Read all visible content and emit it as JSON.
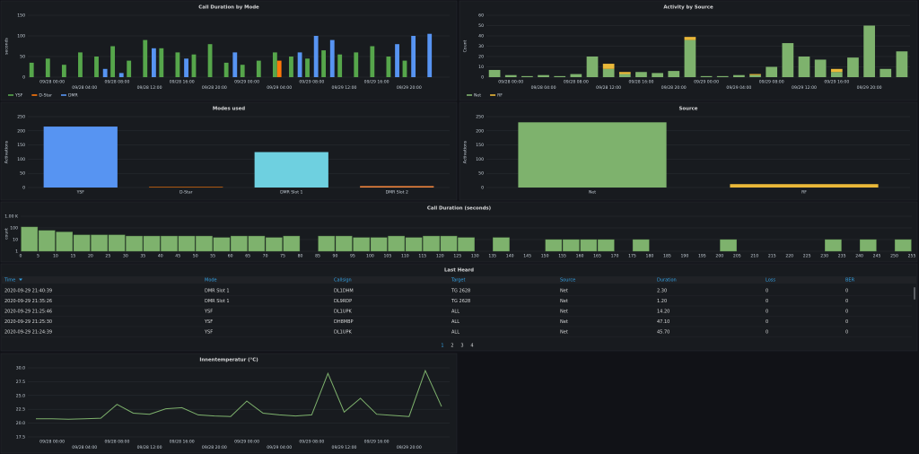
{
  "chart_data": [
    {
      "type": "bar",
      "title": "Call Duration by Mode",
      "ylabel": "seconds",
      "legend": "bottom-left",
      "ylim": [
        0,
        150
      ],
      "yticks": [
        0,
        50,
        100,
        150
      ],
      "grid": true,
      "categories": [
        null,
        "09/28 00:00",
        null,
        "09/28 04:00",
        null,
        "09/28 08:00",
        null,
        "09/28 12:00",
        null,
        "09/28 16:00",
        null,
        "09/28 20:00",
        null,
        "09/29 00:00",
        null,
        "09/29 04:00",
        null,
        "09/29 08:00",
        null,
        "09/29 12:00",
        null,
        "09/29 16:00",
        null,
        "09/29 20:00",
        null,
        null
      ],
      "series": [
        {
          "name": "YSF",
          "color": "#56a64b",
          "values": [
            35,
            45,
            30,
            60,
            50,
            75,
            40,
            90,
            70,
            60,
            55,
            80,
            35,
            30,
            40,
            60,
            50,
            45,
            65,
            55,
            60,
            75,
            50,
            40,
            null,
            null
          ]
        },
        {
          "name": "D-Star",
          "color": "#ff780a",
          "values": [
            null,
            null,
            null,
            null,
            null,
            null,
            null,
            null,
            null,
            null,
            null,
            null,
            null,
            null,
            null,
            40,
            null,
            null,
            null,
            null,
            null,
            null,
            null,
            null,
            null,
            null
          ]
        },
        {
          "name": "DMR",
          "color": "#5794f2",
          "values": [
            null,
            null,
            null,
            null,
            20,
            10,
            null,
            70,
            null,
            45,
            null,
            null,
            60,
            null,
            null,
            null,
            60,
            100,
            90,
            null,
            null,
            null,
            80,
            100,
            105,
            null
          ]
        }
      ]
    },
    {
      "type": "bar",
      "stacked": true,
      "title": "Activity by Source",
      "ylabel": "Count",
      "legend": "bottom-left",
      "ylim": [
        0,
        60
      ],
      "yticks": [
        0,
        10,
        20,
        30,
        40,
        50,
        60
      ],
      "grid": true,
      "categories": [
        null,
        "09/28 00:00",
        null,
        "09/28 04:00",
        null,
        "09/28 08:00",
        null,
        "09/28 12:00",
        null,
        "09/28 16:00",
        null,
        "09/28 20:00",
        null,
        "09/29 00:00",
        null,
        "09/29 04:00",
        null,
        "09/29 08:00",
        null,
        "09/29 12:00",
        null,
        "09/29 16:00",
        null,
        "09/29 20:00",
        null,
        null
      ],
      "series": [
        {
          "name": "Net",
          "color": "#7eb26d",
          "values": [
            7,
            2,
            1,
            2,
            1,
            3,
            20,
            8,
            3,
            5,
            4,
            6,
            36,
            1,
            1,
            2,
            2,
            10,
            33,
            20,
            17,
            5,
            19,
            50,
            8,
            25
          ]
        },
        {
          "name": "RF",
          "color": "#eab839",
          "values": [
            null,
            null,
            null,
            null,
            null,
            null,
            null,
            5,
            2,
            null,
            null,
            null,
            3,
            null,
            null,
            null,
            1,
            null,
            null,
            null,
            null,
            3,
            null,
            null,
            null,
            null
          ]
        }
      ]
    },
    {
      "type": "category-bar",
      "title": "Modes used",
      "ylabel": "Activations",
      "ylim": [
        0,
        250
      ],
      "yticks": [
        0,
        50,
        100,
        150,
        200,
        250
      ],
      "grid": true,
      "categories": [
        "YSF",
        "D-Star",
        "DMR Slot 1",
        "DMR Slot 2"
      ],
      "values": [
        215,
        2,
        125,
        5
      ],
      "colors": [
        "#5794f2",
        "#ff780a",
        "#6ed0e0",
        "#ef843c"
      ]
    },
    {
      "type": "category-bar",
      "title": "Source",
      "ylabel": "Activations",
      "ylim": [
        0,
        250
      ],
      "yticks": [
        0,
        50,
        100,
        150,
        200,
        250
      ],
      "grid": true,
      "categories": [
        "Net",
        "RF"
      ],
      "values": [
        230,
        12
      ],
      "colors": [
        "#7eb26d",
        "#eab839"
      ]
    },
    {
      "type": "histogram",
      "title": "Call Duration (seconds)",
      "ylabel": "count",
      "log": true,
      "color": "#7eb26d",
      "ylim": [
        1,
        1000
      ],
      "yticks": [
        1,
        10,
        100,
        {
          "value": 1000,
          "label": "1.00 K"
        }
      ],
      "grid": true,
      "xlim": [
        0,
        255
      ],
      "bins": [
        0,
        5,
        10,
        15,
        20,
        25,
        30,
        35,
        40,
        45,
        50,
        55,
        60,
        65,
        70,
        75,
        80,
        85,
        90,
        95,
        100,
        105,
        110,
        115,
        120,
        125,
        130,
        135,
        140,
        145,
        150,
        155,
        160,
        165,
        170,
        175,
        180,
        185,
        190,
        195,
        200,
        205,
        210,
        215,
        220,
        225,
        230,
        235,
        240,
        245,
        250,
        255
      ],
      "values": [
        120,
        60,
        45,
        25,
        25,
        25,
        20,
        20,
        20,
        20,
        20,
        15,
        20,
        20,
        15,
        20,
        null,
        20,
        20,
        15,
        15,
        20,
        15,
        20,
        20,
        15,
        null,
        15,
        null,
        null,
        10,
        10,
        10,
        10,
        null,
        10,
        null,
        null,
        null,
        null,
        10,
        null,
        null,
        null,
        null,
        null,
        10,
        null,
        10,
        null,
        10
      ]
    },
    {
      "type": "line",
      "title": "Innentemperatur (°C)",
      "color": "#7eb26d",
      "ylim": [
        17.5,
        30
      ],
      "yticks": [
        17.5,
        {
          "value": 20,
          "label": "20.0"
        },
        22.5,
        {
          "value": 25,
          "label": "25.0"
        },
        27.5,
        {
          "value": 30,
          "label": "30.0"
        }
      ],
      "grid": true,
      "categories": [
        null,
        "09/28 00:00",
        null,
        "09/28 04:00",
        null,
        "09/28 08:00",
        null,
        "09/28 12:00",
        null,
        "09/28 16:00",
        null,
        "09/28 20:00",
        null,
        "09/29 00:00",
        null,
        "09/29 04:00",
        null,
        "09/29 08:00",
        null,
        "09/29 12:00",
        null,
        "09/29 16:00",
        null,
        "09/29 20:00",
        null,
        null
      ],
      "values": [
        20.8,
        20.8,
        20.7,
        20.8,
        20.9,
        23.4,
        21.8,
        21.6,
        22.6,
        22.8,
        21.5,
        21.3,
        21.2,
        24.0,
        21.8,
        21.5,
        21.3,
        21.5,
        29.0,
        22.0,
        24.5,
        21.6,
        21.4,
        21.2,
        29.5,
        23.0
      ]
    }
  ],
  "table": {
    "title": "Last Heard",
    "columns": [
      "Time",
      "Mode",
      "Callsign",
      "Target",
      "Source",
      "Duration",
      "Loss",
      "BER"
    ],
    "rows": [
      [
        "2020-09-29 21:40:39",
        "DMR Slot 1",
        "DL1DHM",
        "TG 2628",
        "Net",
        "2.30",
        "0",
        "0"
      ],
      [
        "2020-09-29 21:35:26",
        "DMR Slot 1",
        "DL9RDP",
        "TG 2628",
        "Net",
        "1.20",
        "0",
        "0"
      ],
      [
        "2020-09-29 21:25:46",
        "YSF",
        "DL1UPK",
        "ALL",
        "Net",
        "14.20",
        "0",
        "0"
      ],
      [
        "2020-09-29 21:25:30",
        "YSF",
        "DH8MBP",
        "ALL",
        "Net",
        "47.10",
        "0",
        "0"
      ],
      [
        "2020-09-29 21:24:39",
        "YSF",
        "DL1UPK",
        "ALL",
        "Net",
        "45.70",
        "0",
        "0"
      ]
    ],
    "pages": [
      "1",
      "2",
      "3",
      "4"
    ]
  }
}
